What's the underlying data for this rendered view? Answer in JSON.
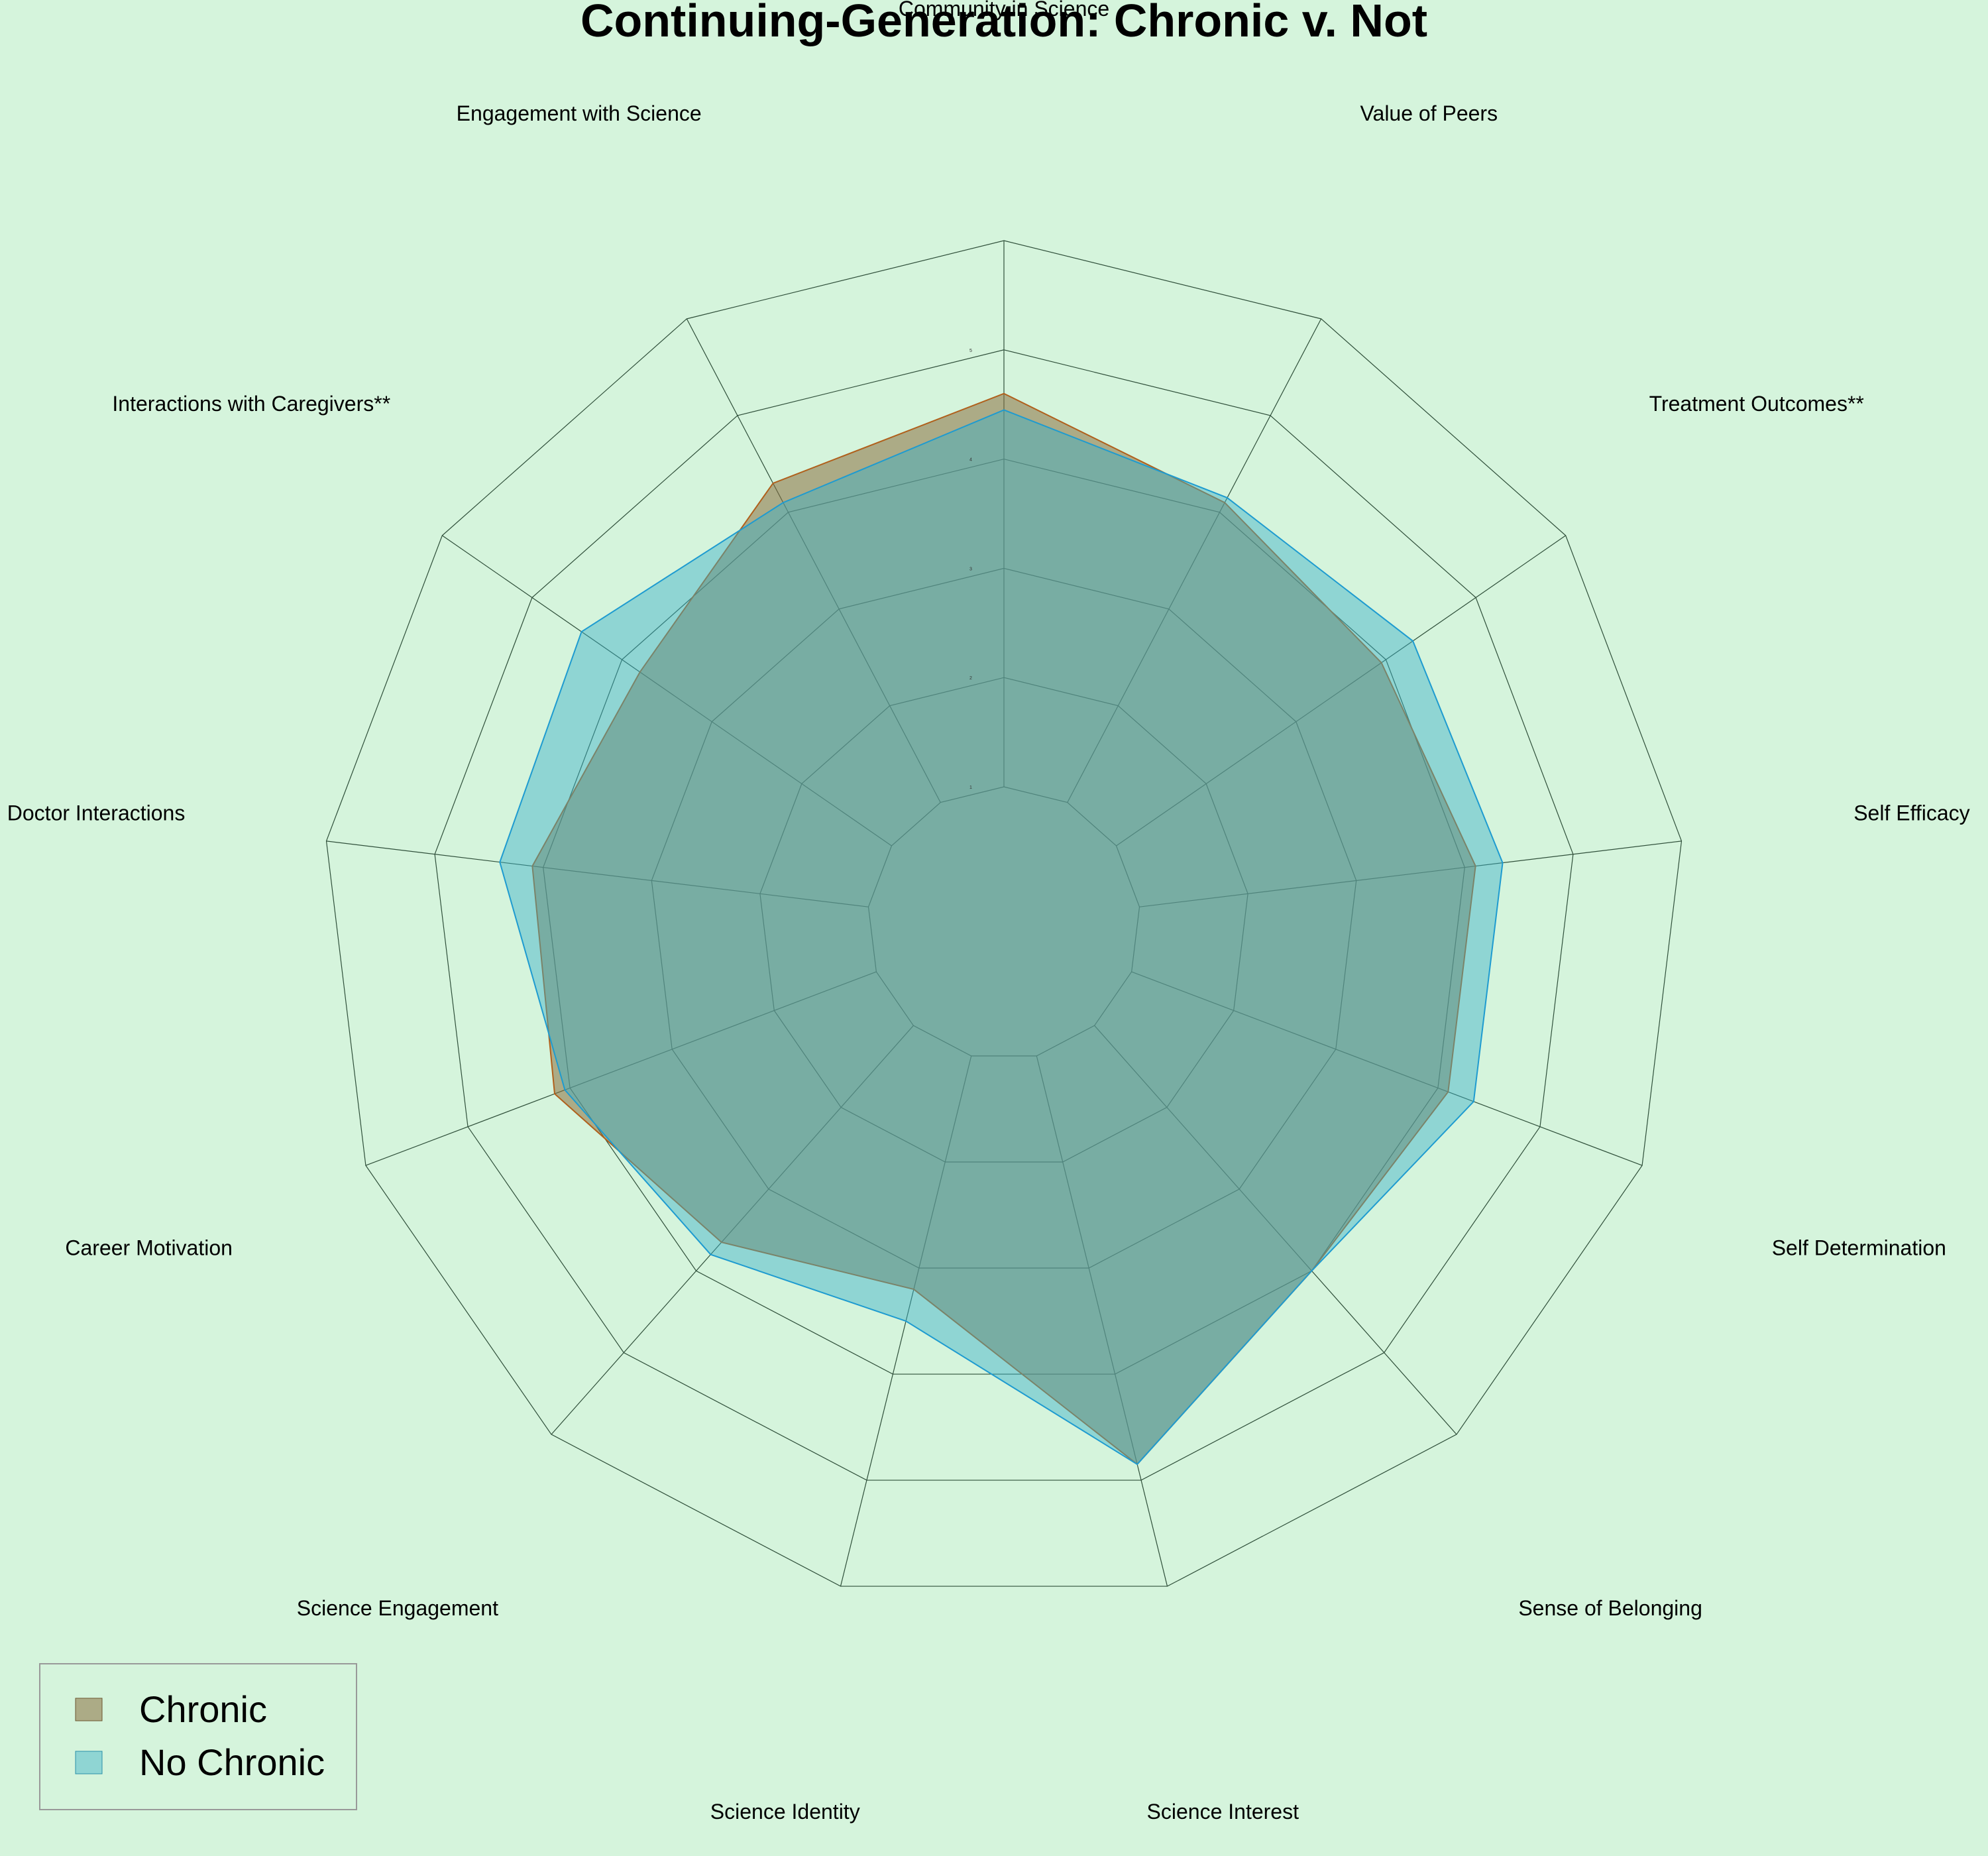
{
  "chart_data": {
    "type": "radar",
    "title": "Continuing-Generation: Chronic v. Not",
    "categories": [
      "Community in Science",
      "Value of Peers",
      "Treatment Outcomes**",
      "Self Efficacy",
      "Self Determination",
      "Sense of Belonging",
      "Science Interest",
      "Science Identity",
      "Science Engagement",
      "Career Motivation",
      "Doctor Interactions",
      "Interactions with Caregivers**",
      "Engagement with Science"
    ],
    "rlim": [
      1,
      5
    ],
    "ticks": [
      "1",
      "2",
      "3",
      "4",
      "5"
    ],
    "grid": true,
    "legend_position": "bottom-left",
    "series": [
      {
        "name": "Chronic",
        "color": "#8b6f40",
        "values": [
          4.6,
          4.1,
          3.95,
          4.1,
          4.1,
          4.0,
          4.85,
          3.2,
          3.65,
          4.15,
          4.1,
          3.8,
          4.3
        ]
      },
      {
        "name": "No Chronic",
        "color": "#3ab0c8",
        "values": [
          4.45,
          4.15,
          4.3,
          4.35,
          4.35,
          4.0,
          4.85,
          3.5,
          3.8,
          4.05,
          4.4,
          4.45,
          4.1
        ]
      }
    ]
  }
}
